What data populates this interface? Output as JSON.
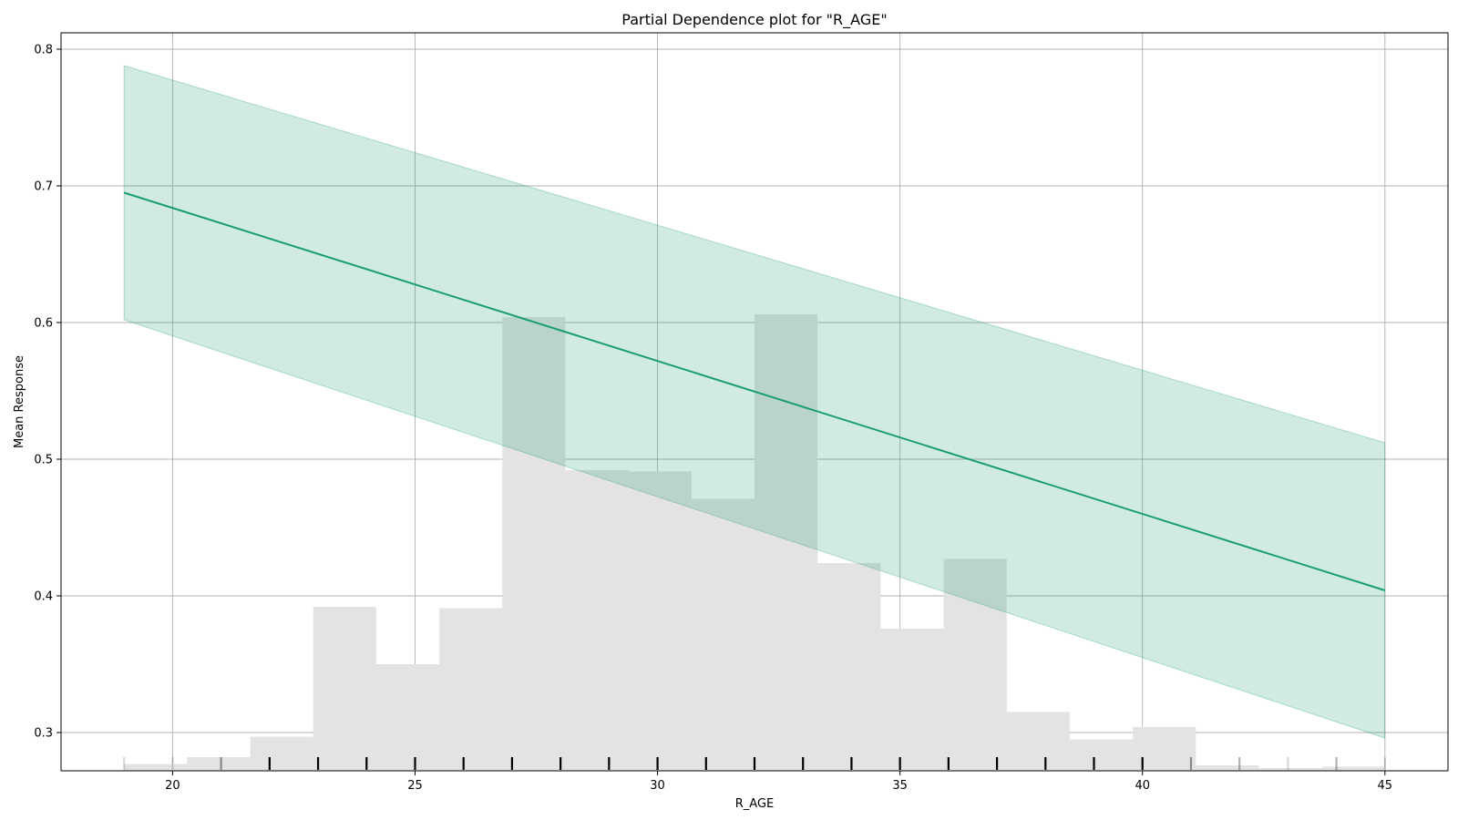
{
  "chart_data": {
    "type": "line",
    "title": "Partial Dependence plot for \"R_AGE\"",
    "xlabel": "R_AGE",
    "ylabel": "Mean Response",
    "xlim": [
      17.7,
      46.3
    ],
    "ylim": [
      0.272,
      0.812
    ],
    "xticks": [
      20,
      25,
      30,
      35,
      40,
      45
    ],
    "yticks": [
      0.3,
      0.4,
      0.5,
      0.6,
      0.7,
      0.8
    ],
    "ytick_labels": [
      "0.3",
      "0.4",
      "0.5",
      "0.6",
      "0.7",
      "0.8"
    ],
    "grid": true,
    "series": [
      {
        "x": [
          19,
          45
        ],
        "mean": [
          0.695,
          0.404
        ],
        "lower": [
          0.602,
          0.296
        ],
        "upper": [
          0.788,
          0.512
        ],
        "color": "#1a9d72",
        "band_color": "#1a9d72"
      }
    ],
    "histogram": {
      "color": "#e3e3e3",
      "bins": [
        {
          "x0": 19.0,
          "x1": 20.3,
          "top": 0.277
        },
        {
          "x0": 20.3,
          "x1": 21.6,
          "top": 0.282
        },
        {
          "x0": 21.6,
          "x1": 22.9,
          "top": 0.297
        },
        {
          "x0": 22.9,
          "x1": 24.2,
          "top": 0.392
        },
        {
          "x0": 24.2,
          "x1": 25.5,
          "top": 0.35
        },
        {
          "x0": 25.5,
          "x1": 26.8,
          "top": 0.391
        },
        {
          "x0": 26.8,
          "x1": 28.1,
          "top": 0.604
        },
        {
          "x0": 28.1,
          "x1": 29.4,
          "top": 0.492
        },
        {
          "x0": 29.4,
          "x1": 30.7,
          "top": 0.491
        },
        {
          "x0": 30.7,
          "x1": 32.0,
          "top": 0.471
        },
        {
          "x0": 32.0,
          "x1": 33.3,
          "top": 0.606
        },
        {
          "x0": 33.3,
          "x1": 34.6,
          "top": 0.424
        },
        {
          "x0": 34.6,
          "x1": 35.9,
          "top": 0.376
        },
        {
          "x0": 35.9,
          "x1": 37.2,
          "top": 0.427
        },
        {
          "x0": 37.2,
          "x1": 38.5,
          "top": 0.315
        },
        {
          "x0": 38.5,
          "x1": 39.8,
          "top": 0.295
        },
        {
          "x0": 39.8,
          "x1": 41.1,
          "top": 0.304
        },
        {
          "x0": 41.1,
          "x1": 42.4,
          "top": 0.276
        },
        {
          "x0": 42.4,
          "x1": 43.7,
          "top": 0.274
        },
        {
          "x0": 43.7,
          "x1": 45.0,
          "top": 0.275
        }
      ]
    },
    "rug": {
      "x": [
        19,
        20,
        21,
        22,
        23,
        24,
        25,
        26,
        27,
        28,
        29,
        30,
        31,
        32,
        33,
        34,
        35,
        36,
        37,
        38,
        39,
        40,
        41,
        42,
        43,
        44,
        45
      ],
      "strength": [
        0.15,
        0.15,
        0.4,
        1,
        1,
        1,
        1,
        1,
        1,
        1,
        1,
        1,
        1,
        1,
        1,
        1,
        1,
        1,
        1,
        1,
        1,
        1,
        0.4,
        0.3,
        0.15,
        0.3,
        0.15
      ]
    }
  }
}
